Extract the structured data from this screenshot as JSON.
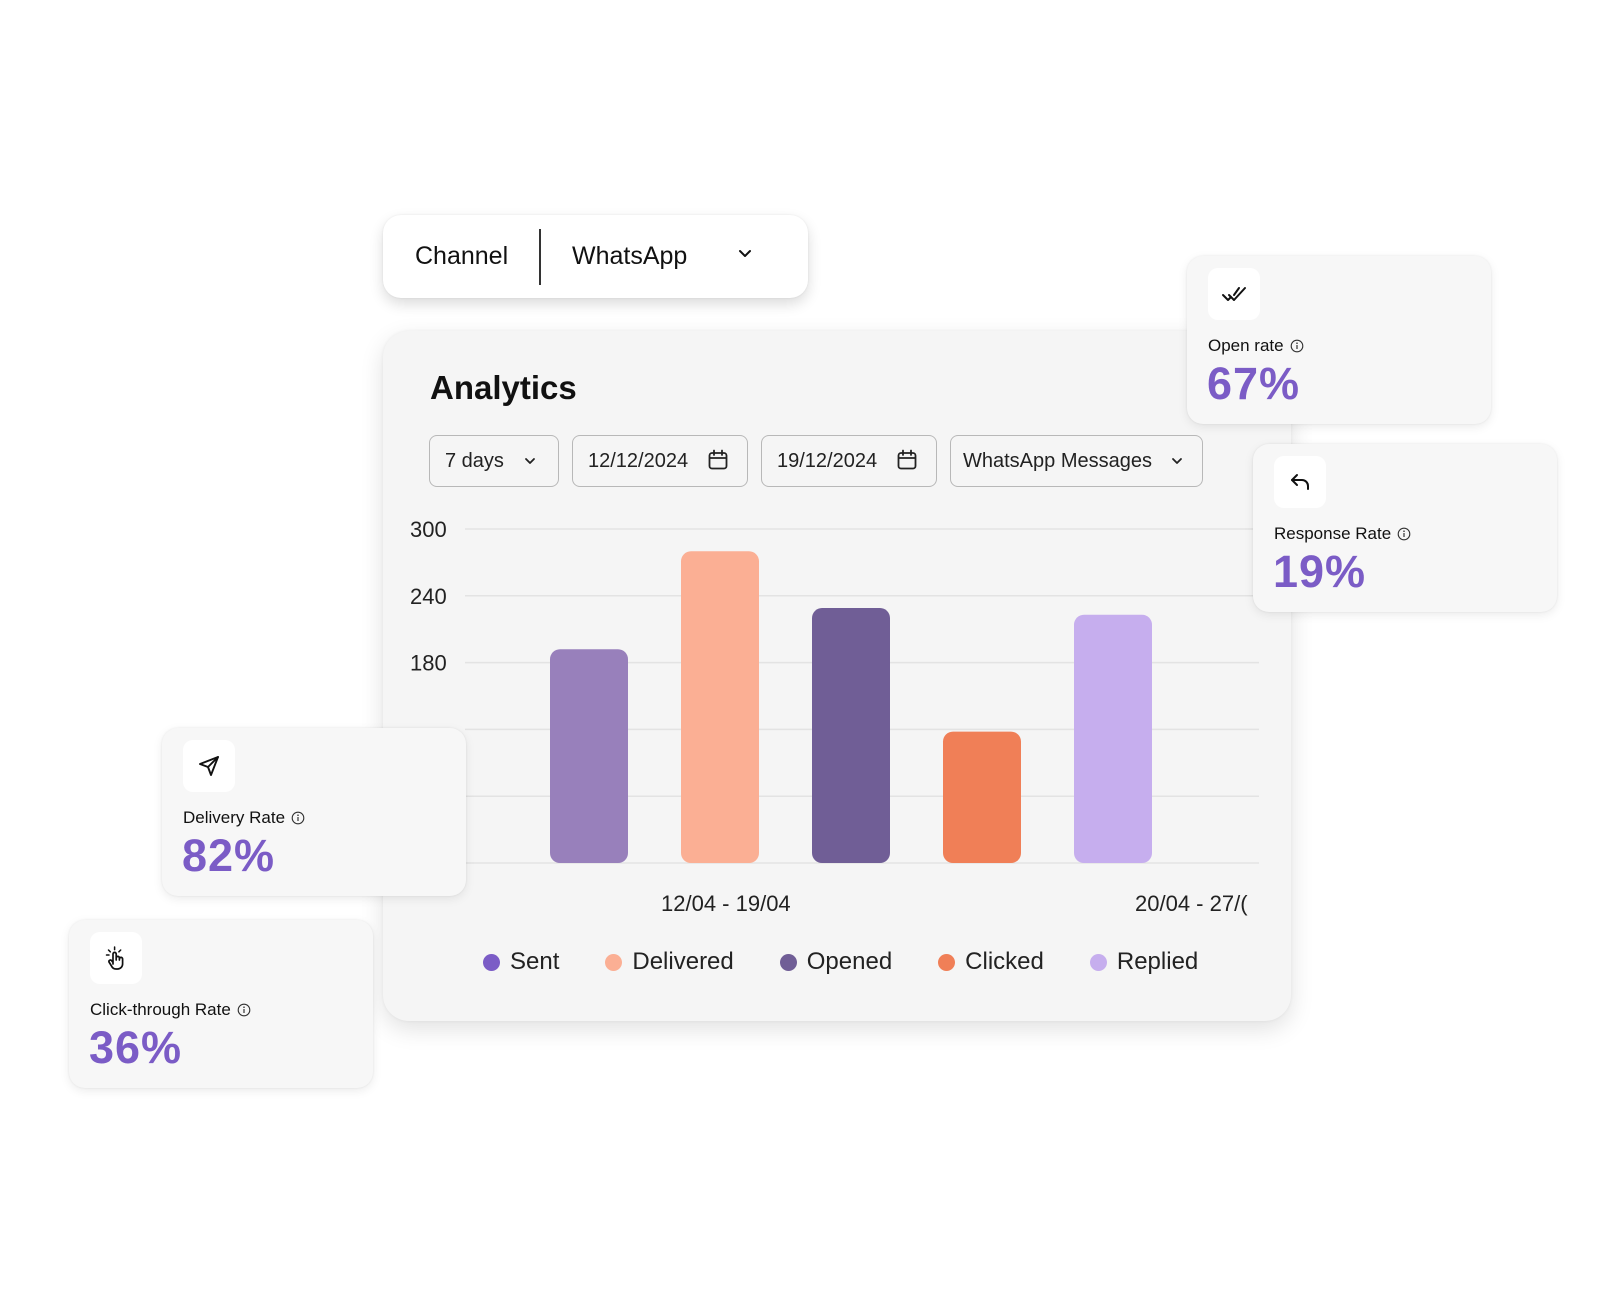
{
  "channel": {
    "label": "Channel",
    "value": "WhatsApp"
  },
  "panel": {
    "title": "Analytics",
    "filters": {
      "range": "7 days",
      "start_date": "12/12/2024",
      "end_date": "19/12/2024",
      "message_type": "WhatsApp Messages"
    }
  },
  "chart_data": {
    "type": "bar",
    "y_ticks": [
      "300",
      "240",
      "180"
    ],
    "x_labels": [
      "12/04 - 19/04",
      "20/04 - 27/("
    ],
    "ylim": [
      0,
      300
    ],
    "grid": true,
    "legend_placement": "bottom",
    "series": [
      {
        "name": "Sent",
        "value": 192,
        "color": "#9880bb",
        "legend_color": "#7b5cc6"
      },
      {
        "name": "Delivered",
        "value": 280,
        "color": "#fbaf94",
        "legend_color": "#fbaf94"
      },
      {
        "name": "Opened",
        "value": 229,
        "color": "#705e96",
        "legend_color": "#705e96"
      },
      {
        "name": "Clicked",
        "value": 118,
        "color": "#f07f57",
        "legend_color": "#f07f57"
      },
      {
        "name": "Replied",
        "value": 223,
        "color": "#c6aeee",
        "legend_color": "#c6aeee"
      }
    ]
  },
  "cards": {
    "open_rate": {
      "label": "Open rate",
      "value": "67%",
      "icon": "double-check-icon"
    },
    "response_rate": {
      "label": "Response Rate",
      "value": "19%",
      "icon": "reply-icon"
    },
    "delivery_rate": {
      "label": "Delivery Rate",
      "value": "82%",
      "icon": "send-icon"
    },
    "click_through_rate": {
      "label": "Click-through Rate",
      "value": "36%",
      "icon": "tap-icon"
    }
  },
  "colors": {
    "accent": "#7b5cc6",
    "panel_bg": "#f5f5f5"
  }
}
